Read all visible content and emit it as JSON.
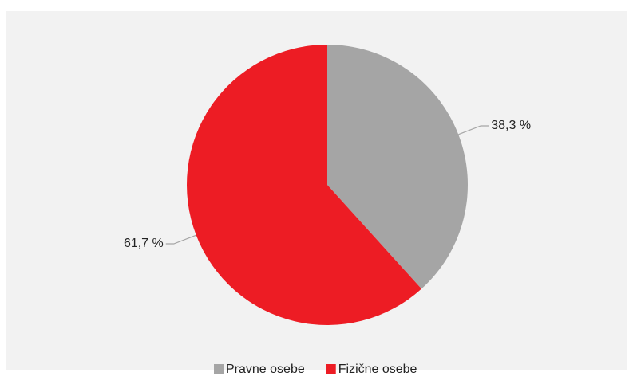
{
  "chart_data": {
    "type": "pie",
    "categories": [
      "Pravne osebe",
      "Fizične osebe"
    ],
    "values": [
      38.3,
      61.7
    ],
    "value_labels": [
      "38,3 %",
      "61,7 %"
    ],
    "colors": [
      "#a5a5a5",
      "#ed1c24"
    ],
    "legend": "bottom"
  }
}
